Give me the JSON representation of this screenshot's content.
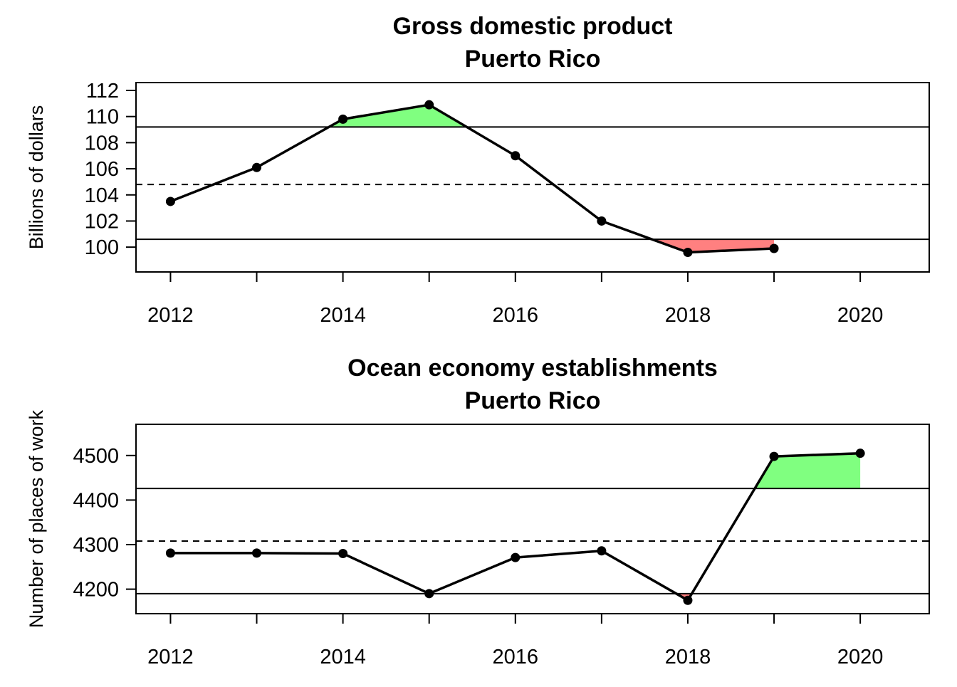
{
  "chart_data": [
    {
      "type": "line",
      "title": "Gross domestic product",
      "subtitle": "Puerto Rico",
      "xlabel": "",
      "ylabel": "Billions of dollars",
      "xlim": [
        2011.6,
        2020.8
      ],
      "ylim": [
        98.1,
        112.6
      ],
      "x_ticks": [
        {
          "value": 2012,
          "label": "2012"
        },
        {
          "value": 2013,
          "label": ""
        },
        {
          "value": 2014,
          "label": "2014"
        },
        {
          "value": 2015,
          "label": ""
        },
        {
          "value": 2016,
          "label": "2016"
        },
        {
          "value": 2017,
          "label": ""
        },
        {
          "value": 2018,
          "label": "2018"
        },
        {
          "value": 2019,
          "label": ""
        },
        {
          "value": 2020,
          "label": "2020"
        }
      ],
      "y_ticks": [
        {
          "value": 100,
          "label": "100"
        },
        {
          "value": 102,
          "label": "102"
        },
        {
          "value": 104,
          "label": "104"
        },
        {
          "value": 106,
          "label": "106"
        },
        {
          "value": 108,
          "label": "108"
        },
        {
          "value": 110,
          "label": "110"
        },
        {
          "value": 112,
          "label": "112"
        }
      ],
      "x": [
        2012,
        2013,
        2014,
        2015,
        2016,
        2017,
        2018,
        2019
      ],
      "values": [
        103.5,
        106.1,
        109.8,
        110.9,
        107.0,
        102.0,
        99.6,
        99.9
      ],
      "mean": 104.8,
      "upper": 109.2,
      "lower": 100.6,
      "colors": {
        "above": "#80ff80",
        "below": "#ff8080",
        "line": "#000000"
      },
      "grid": false
    },
    {
      "type": "line",
      "title": "Ocean economy establishments",
      "subtitle": "Puerto Rico",
      "xlabel": "",
      "ylabel": "Number of places of work",
      "xlim": [
        2011.6,
        2020.8
      ],
      "ylim": [
        4145,
        4570
      ],
      "x_ticks": [
        {
          "value": 2012,
          "label": "2012"
        },
        {
          "value": 2013,
          "label": ""
        },
        {
          "value": 2014,
          "label": "2014"
        },
        {
          "value": 2015,
          "label": ""
        },
        {
          "value": 2016,
          "label": "2016"
        },
        {
          "value": 2017,
          "label": ""
        },
        {
          "value": 2018,
          "label": "2018"
        },
        {
          "value": 2019,
          "label": ""
        },
        {
          "value": 2020,
          "label": "2020"
        }
      ],
      "y_ticks": [
        {
          "value": 4200,
          "label": "4200"
        },
        {
          "value": 4300,
          "label": "4300"
        },
        {
          "value": 4400,
          "label": "4400"
        },
        {
          "value": 4500,
          "label": "4500"
        }
      ],
      "x": [
        2012,
        2013,
        2014,
        2015,
        2016,
        2017,
        2018,
        2019,
        2020
      ],
      "values": [
        4281,
        4281,
        4280,
        4190,
        4271,
        4286,
        4175,
        4498,
        4505
      ],
      "mean": 4308,
      "upper": 4426,
      "lower": 4190,
      "colors": {
        "above": "#80ff80",
        "below": "#ff8080",
        "line": "#000000"
      },
      "grid": false
    }
  ]
}
